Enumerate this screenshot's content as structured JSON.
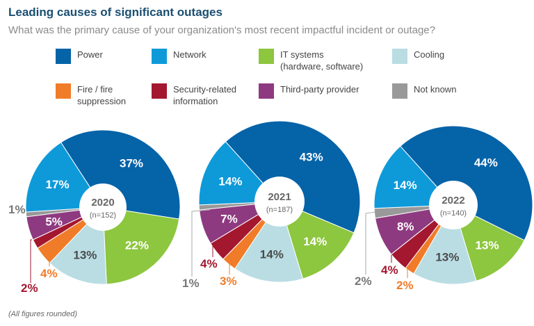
{
  "header": {
    "title": "Leading causes of significant outages",
    "subtitle": "What was the primary cause of your organization's most recent impactful incident or outage?"
  },
  "footnote": "(All figures rounded)",
  "chart_data": {
    "type": "pie",
    "variant": "donut",
    "title": "Leading causes of significant outages",
    "subtitle": "What was the primary cause of your organization's most recent impactful incident or outage?",
    "legend_position": "top",
    "categories": [
      {
        "key": "power",
        "label": "Power",
        "label_lines": [
          "Power"
        ],
        "color": "#0563a8"
      },
      {
        "key": "network",
        "label": "Network",
        "label_lines": [
          "Network"
        ],
        "color": "#0e9ad9"
      },
      {
        "key": "it",
        "label": "IT systems (hardware, software)",
        "label_lines": [
          "IT systems",
          "(hardware, software)"
        ],
        "color": "#8dc63f"
      },
      {
        "key": "cooling",
        "label": "Cooling",
        "label_lines": [
          "Cooling"
        ],
        "color": "#b9dde3"
      },
      {
        "key": "fire",
        "label": "Fire / fire suppression",
        "label_lines": [
          "Fire / fire",
          "suppression"
        ],
        "color": "#f07c2a"
      },
      {
        "key": "security",
        "label": "Security-related information",
        "label_lines": [
          "Security-related",
          "information"
        ],
        "color": "#a3172f"
      },
      {
        "key": "thirdparty",
        "label": "Third-party provider",
        "label_lines": [
          "Third-party provider"
        ],
        "color": "#8e3a80"
      },
      {
        "key": "notknown",
        "label": "Not known",
        "label_lines": [
          "Not known"
        ],
        "color": "#999999"
      }
    ],
    "slice_order": [
      "power",
      "it",
      "cooling",
      "fire",
      "security",
      "thirdparty",
      "notknown",
      "network"
    ],
    "charts": [
      {
        "year": "2020",
        "n_label": "(n=152)",
        "values": {
          "power": 37,
          "network": 17,
          "it": 22,
          "cooling": 13,
          "fire": 4,
          "security": 2,
          "thirdparty": 5,
          "notknown": 1
        }
      },
      {
        "year": "2021",
        "n_label": "(n=187)",
        "values": {
          "power": 43,
          "network": 14,
          "it": 14,
          "cooling": 14,
          "fire": 3,
          "security": 4,
          "thirdparty": 7,
          "notknown": 1
        }
      },
      {
        "year": "2022",
        "n_label": "(n=140)",
        "values": {
          "power": 44,
          "network": 14,
          "it": 13,
          "cooling": 13,
          "fire": 2,
          "security": 4,
          "thirdparty": 8,
          "notknown": 2
        }
      }
    ],
    "unit": "%"
  }
}
